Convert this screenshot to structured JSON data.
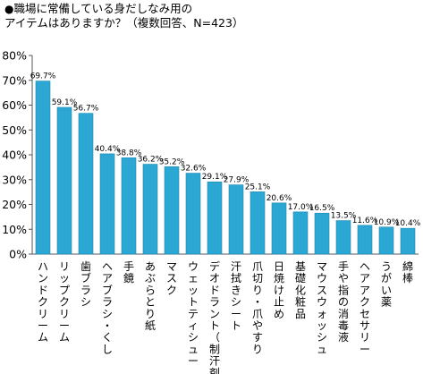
{
  "header": {
    "bullet": "●",
    "line1": "職場に常備している身だしなみ用の",
    "line2": "アイテムはありますか？（複数回答、N=423）"
  },
  "chart_data": {
    "type": "bar",
    "title": "職場に常備している身だしなみ用のアイテムはありますか？（複数回答、N=423）",
    "categories": [
      "ハンドクリーム",
      "リップクリーム",
      "歯ブラシ",
      "ヘアブラシ・くし",
      "手鏡",
      "あぶらとり紙",
      "マスク",
      "ウェットティシュー",
      "デオドラント（制汗剤）",
      "汗拭きシート",
      "爪切り・爪やすり",
      "日焼け止め",
      "基礎化粧品",
      "マウスウォッシュ",
      "手や指の消毒液",
      "ヘアアクセサリー",
      "うがい薬",
      "綿棒"
    ],
    "values": [
      69.7,
      59.1,
      56.7,
      40.4,
      38.8,
      36.2,
      35.2,
      32.6,
      29.1,
      27.9,
      25.1,
      20.6,
      17.0,
      16.5,
      13.5,
      11.6,
      10.9,
      10.4
    ],
    "data_labels": [
      "69.7%",
      "59.1%",
      "56.7%",
      "40.4%",
      "38.8%",
      "36.2%",
      "35.2%",
      "32.6%",
      "29.1%",
      "27.9%",
      "25.1%",
      "20.6%",
      "17.0%",
      "16.5%",
      "13.5%",
      "11.6%",
      "10.9%",
      "10.4%"
    ],
    "y_ticks": [
      "0%",
      "10%",
      "20%",
      "30%",
      "40%",
      "50%",
      "60%",
      "70%",
      "80%"
    ],
    "ylim": [
      0,
      80
    ],
    "grid": false,
    "legend": "none",
    "bar_color": "#2ca6d2",
    "bar_edge_color": "#1e8ab3",
    "axis_color": "#555555"
  }
}
